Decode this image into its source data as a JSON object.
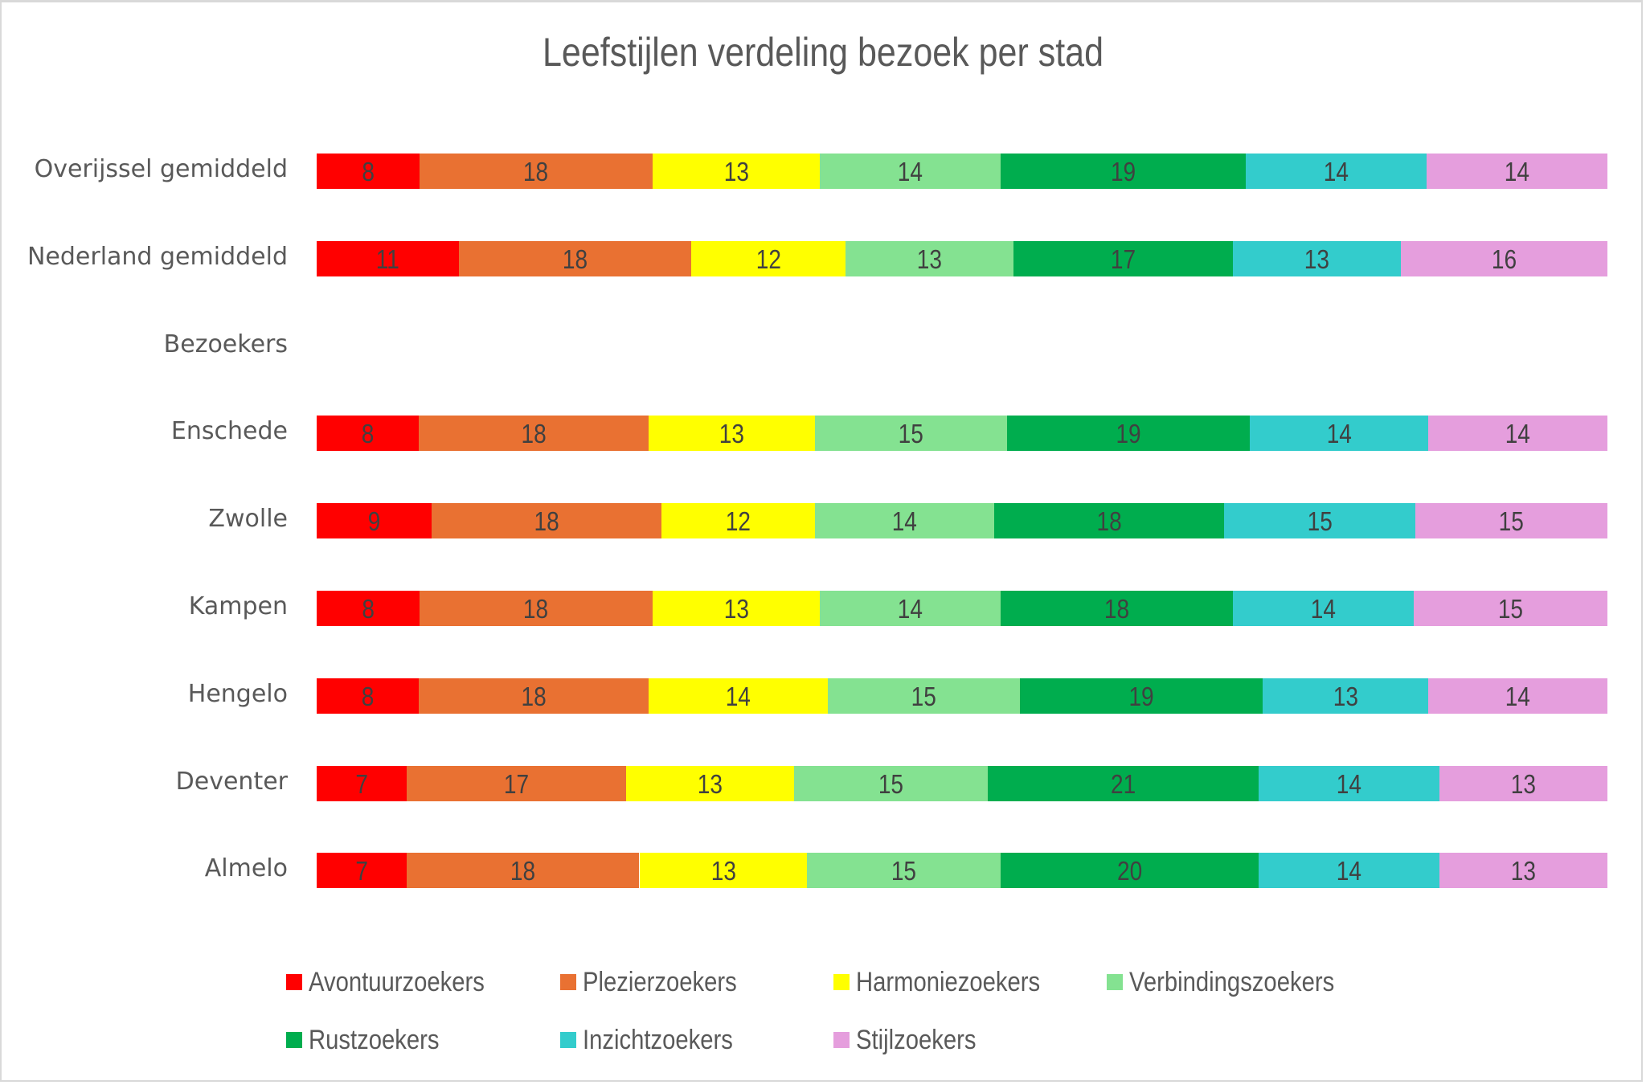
{
  "chart_data": {
    "type": "bar",
    "orientation": "horizontal",
    "stacked": "100%",
    "title": "Leefstijlen verdeling bezoek per stad",
    "xlabel": "",
    "ylabel": "",
    "grid": false,
    "legend_position": "bottom",
    "categories": [
      "Overijssel gemiddeld",
      "Nederland gemiddeld",
      "Bezoekers",
      "Enschede",
      "Zwolle",
      "Kampen",
      "Hengelo",
      "Deventer",
      "Almelo"
    ],
    "series": [
      {
        "name": "Avontuurzoekers",
        "color": "#ff0000",
        "values": [
          8,
          11,
          null,
          8,
          9,
          8,
          8,
          7,
          7
        ]
      },
      {
        "name": "Plezierzoekers",
        "color": "#e97132",
        "values": [
          18,
          18,
          null,
          18,
          18,
          18,
          18,
          17,
          18
        ]
      },
      {
        "name": "Harmoniezoekers",
        "color": "#ffff00",
        "values": [
          13,
          12,
          null,
          13,
          12,
          13,
          14,
          13,
          13
        ]
      },
      {
        "name": "Verbindingszoekers",
        "color": "#84e291",
        "values": [
          14,
          13,
          null,
          15,
          14,
          14,
          15,
          15,
          15
        ]
      },
      {
        "name": "Rustzoekers",
        "color": "#00ad4e",
        "values": [
          19,
          17,
          null,
          19,
          18,
          18,
          19,
          21,
          20
        ]
      },
      {
        "name": "Inzichtzoekers",
        "color": "#33cccc",
        "values": [
          14,
          13,
          null,
          14,
          15,
          14,
          13,
          14,
          14
        ]
      },
      {
        "name": "Stijlzoekers",
        "color": "#e59edd",
        "values": [
          14,
          16,
          null,
          14,
          15,
          15,
          14,
          13,
          13
        ]
      }
    ],
    "legend_rows": [
      [
        "Avontuurzoekers",
        "Plezierzoekers",
        "Harmoniezoekers",
        "Verbindingszoekers"
      ],
      [
        "Rustzoekers",
        "Inzichtzoekers",
        "Stijlzoekers"
      ]
    ]
  }
}
